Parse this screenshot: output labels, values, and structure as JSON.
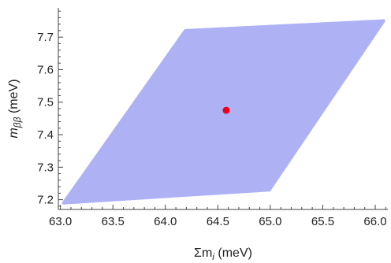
{
  "chart_data": {
    "type": "scatter",
    "xlabel_main": "Σm",
    "xlabel_sub": "i",
    "xlabel_unit": " (meV)",
    "ylabel_main": "m",
    "ylabel_sub": "ββ",
    "ylabel_unit": " (meV)",
    "xlim": [
      62.98,
      66.12
    ],
    "ylim": [
      7.17,
      7.79
    ],
    "x_ticks": [
      63.0,
      63.5,
      64.0,
      64.5,
      65.0,
      65.5,
      66.0
    ],
    "x_tick_labels": [
      "63.0",
      "63.5",
      "64.0",
      "64.5",
      "65.0",
      "65.5",
      "66.0"
    ],
    "y_ticks": [
      7.2,
      7.3,
      7.4,
      7.5,
      7.6,
      7.7
    ],
    "y_tick_labels": [
      "7.2",
      "7.3",
      "7.4",
      "7.5",
      "7.6",
      "7.7"
    ],
    "region": {
      "name": "",
      "color": "#aeb2f5",
      "vertices": [
        [
          63.03,
          7.19
        ],
        [
          64.19,
          7.72
        ],
        [
          66.08,
          7.75
        ],
        [
          64.99,
          7.23
        ]
      ]
    },
    "point": {
      "x": 64.58,
      "y": 7.475,
      "color": "#e8001c"
    },
    "grid": false
  }
}
